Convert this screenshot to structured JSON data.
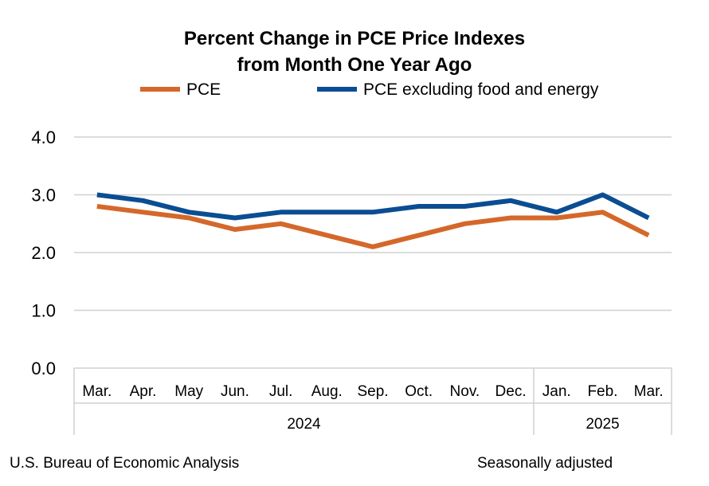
{
  "chart_data": {
    "type": "line",
    "title_line1": "Percent Change in PCE Price Indexes",
    "title_line2": "from Month One Year Ago",
    "categories": [
      "Mar.",
      "Apr.",
      "May",
      "Jun.",
      "Jul.",
      "Aug.",
      "Sep.",
      "Oct.",
      "Nov.",
      "Dec.",
      "Jan.",
      "Feb.",
      "Mar."
    ],
    "year_groups": [
      {
        "label": "2024",
        "count": 10
      },
      {
        "label": "2025",
        "count": 3
      }
    ],
    "series": [
      {
        "name": "PCE",
        "color": "#d4682a",
        "values": [
          2.8,
          2.7,
          2.6,
          2.4,
          2.5,
          2.3,
          2.1,
          2.3,
          2.5,
          2.6,
          2.6,
          2.7,
          2.3
        ]
      },
      {
        "name": "PCE excluding food and energy",
        "color": "#0b4d92",
        "values": [
          3.0,
          2.9,
          2.7,
          2.6,
          2.7,
          2.7,
          2.7,
          2.8,
          2.8,
          2.9,
          2.7,
          3.0,
          2.6
        ]
      }
    ],
    "yticks": [
      "0.0",
      "1.0",
      "2.0",
      "3.0",
      "4.0"
    ],
    "ylim": [
      0,
      4
    ],
    "grid": true,
    "legend": "top-center"
  },
  "footer": {
    "source": "U.S. Bureau of Economic Analysis",
    "note": "Seasonally adjusted"
  }
}
